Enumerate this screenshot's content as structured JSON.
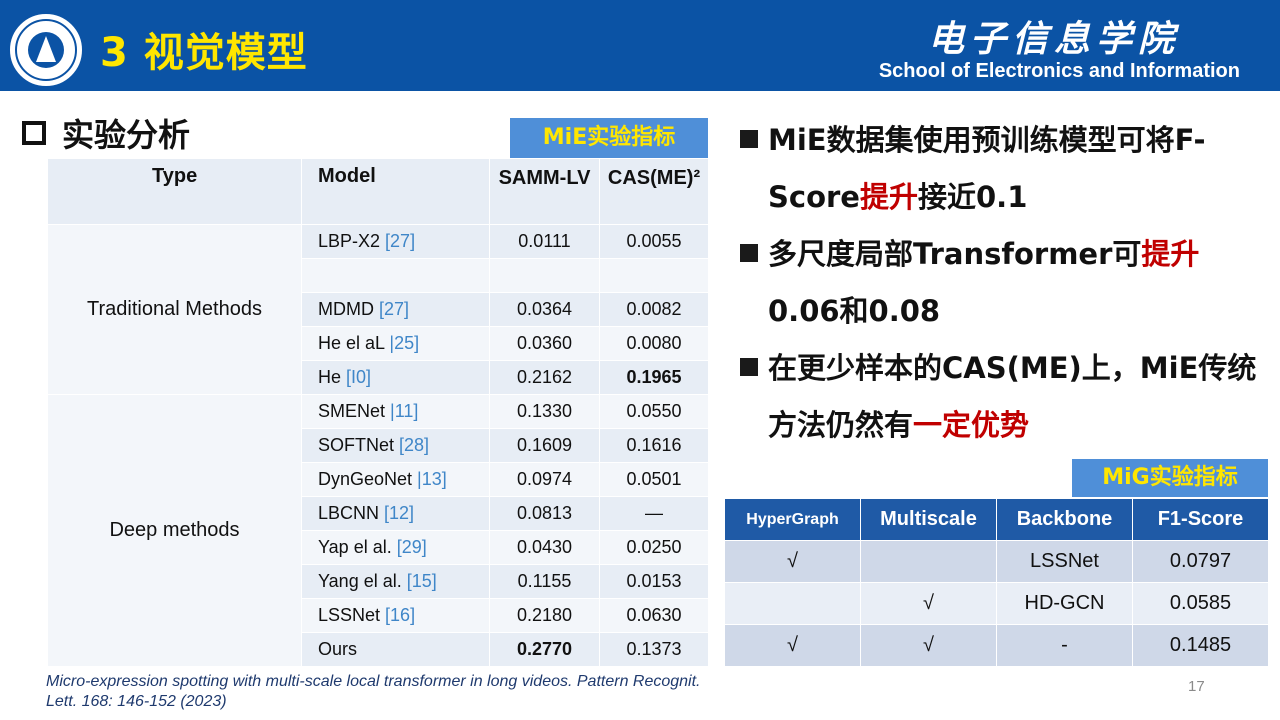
{
  "header": {
    "title": "3 视觉模型",
    "school_cn": "电子信息学院",
    "school_en": "School of Electronics and Information"
  },
  "section": {
    "title": "实验分析"
  },
  "mie_tag": "MiE实验指标",
  "mig_tag": "MiG实验指标",
  "main_table": {
    "headers": {
      "type": "Type",
      "model": "Model",
      "samm": "SAMM-LV",
      "cas": "CAS(ME)²"
    },
    "groups": {
      "traditional": "Traditional Methods",
      "deep": "Deep methods"
    },
    "rows": [
      {
        "name": "LBP-X2 ",
        "ref": "[27]",
        "samm": "0.0111",
        "cas": "0.0055"
      },
      {
        "name": "",
        "ref": "",
        "samm": "",
        "cas": ""
      },
      {
        "name": "MDMD ",
        "ref": "[27]",
        "samm": "0.0364",
        "cas": "0.0082"
      },
      {
        "name": "He el aL ",
        "ref": "|25]",
        "samm": "0.0360",
        "cas": "0.0080"
      },
      {
        "name": "He ",
        "ref": "[I0]",
        "samm": "0.2162",
        "cas": "0.1965"
      },
      {
        "name": "SMENet ",
        "ref": "|11]",
        "samm": "0.1330",
        "cas": "0.0550"
      },
      {
        "name": "SOFTNet ",
        "ref": "[28]",
        "samm": "0.1609",
        "cas": "0.1616"
      },
      {
        "name": "DynGeoNet ",
        "ref": "|13]",
        "samm": "0.0974",
        "cas": "0.0501"
      },
      {
        "name": "LBCNN ",
        "ref": "[12]",
        "samm": "0.0813",
        "cas": "—"
      },
      {
        "name": "Yap el al. ",
        "ref": "[29]",
        "samm": "0.0430",
        "cas": "0.0250"
      },
      {
        "name": "Yang el al. ",
        "ref": "[15]",
        "samm": "0.1155",
        "cas": "0.0153"
      },
      {
        "name": "LSSNet ",
        "ref": "[16]",
        "samm": "0.2180",
        "cas": "0.0630"
      },
      {
        "name": "Ours",
        "ref": "",
        "samm": "0.2770",
        "cas": "0.1373"
      }
    ]
  },
  "bullets": [
    {
      "parts": [
        "MiE数据集使用预训练模型可将F-Score",
        "提升",
        "接近0.1"
      ]
    },
    {
      "parts": [
        "多尺度局部Transformer可",
        "提升",
        "0.06和0.08"
      ]
    },
    {
      "parts": [
        "在更少样本的CAS(ME)上，MiE传统方法仍然有",
        "一定优势",
        ""
      ]
    }
  ],
  "mig_table": {
    "headers": [
      "HyperGraph",
      "Multiscale",
      "Backbone",
      "F1-Score"
    ],
    "rows": [
      [
        "√",
        "",
        "LSSNet",
        "0.0797"
      ],
      [
        "",
        "√",
        "HD-GCN",
        "0.0585"
      ],
      [
        "√",
        "√",
        "-",
        "0.1485"
      ]
    ]
  },
  "citation": "Micro-expression spotting with multi-scale local transformer in long videos. Pattern Recognit. Lett. 168: 146-152 (2023)",
  "page_number": "17"
}
